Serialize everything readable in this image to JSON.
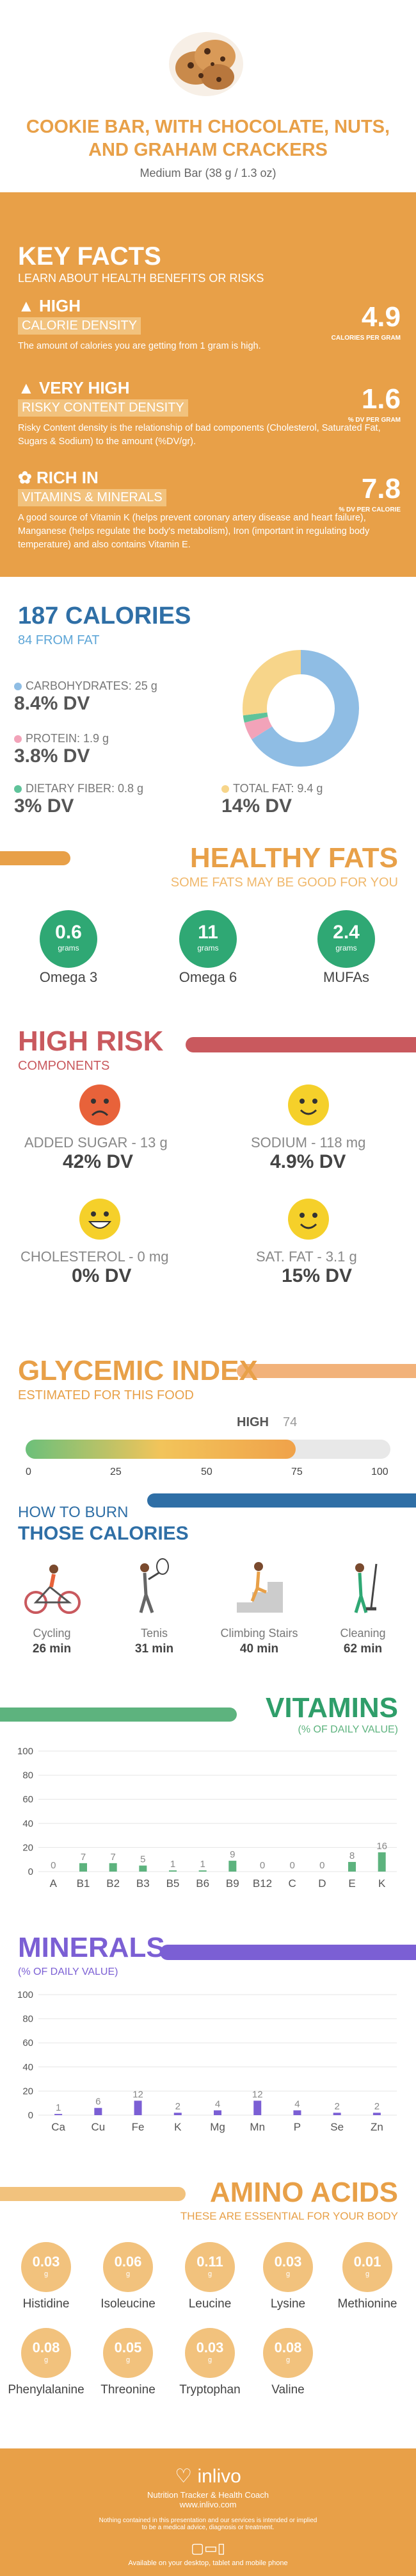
{
  "header": {
    "title": "COOKIE BAR, WITH CHOCOLATE, NUTS, AND GRAHAM CRACKERS",
    "serving": "Medium Bar (38 g / 1.3 oz)"
  },
  "key_facts": {
    "title": "KEY FACTS",
    "subtitle": "LEARN ABOUT HEALTH BENEFITS OR RISKS",
    "items": [
      {
        "l1": "HIGH",
        "l2": "CALORIE DENSITY",
        "value": "4.9",
        "unit": "CALORIES PER GRAM",
        "desc": "The amount of calories you are getting from 1 gram is high."
      },
      {
        "l1": "VERY HIGH",
        "l2": "RISKY CONTENT DENSITY",
        "value": "1.6",
        "unit": "% DV PER GRAM",
        "desc": "Risky Content density is the relationship of bad components (Cholesterol, Saturated Fat, Sugars & Sodium) to the amount (%DV/gr)."
      },
      {
        "l1": "RICH IN",
        "l2": "VITAMINS & MINERALS",
        "value": "7.8",
        "unit": "% DV PER CALORIE",
        "desc": "A good source of Vitamin K (helps prevent coronary artery disease and heart failure), Manganese (helps regulate the body's metabolism), Iron (important in regulating body temperature) and also contains Vitamin E."
      }
    ]
  },
  "calories": {
    "title": "187 CALORIES",
    "from_fat": "84 FROM FAT",
    "nutrients": [
      {
        "label": "CARBOHYDRATES: 25 g",
        "dv": "8.4% DV",
        "color": "#8fbde4"
      },
      {
        "label": "PROTEIN: 1.9 g",
        "dv": "3.8% DV",
        "color": "#f2a3b9"
      },
      {
        "label": "DIETARY FIBER: 0.8 g",
        "dv": "3% DV",
        "color": "#5fc39a"
      },
      {
        "label": "TOTAL FAT: 9.4 g",
        "dv": "14% DV",
        "color": "#f7d58a"
      }
    ],
    "donut": [
      {
        "name": "carbs",
        "fraction": 0.66,
        "color": "#8fbde4"
      },
      {
        "name": "protein",
        "fraction": 0.05,
        "color": "#f2a3b9"
      },
      {
        "name": "fiber",
        "fraction": 0.02,
        "color": "#5fc39a"
      },
      {
        "name": "fat",
        "fraction": 0.27,
        "color": "#f7d58a"
      }
    ]
  },
  "healthy_fats": {
    "title": "HEALTHY FATS",
    "subtitle": "SOME FATS MAY BE GOOD FOR YOU",
    "unit": "grams",
    "items": [
      {
        "value": "0.6",
        "label": "Omega 3"
      },
      {
        "value": "11",
        "label": "Omega 6"
      },
      {
        "value": "2.4",
        "label": "MUFAs"
      }
    ]
  },
  "high_risk": {
    "title": "HIGH RISK",
    "subtitle": "COMPONENTS",
    "items": [
      {
        "label": "ADDED SUGAR - 13 g",
        "dv": "42% DV",
        "face": "sad",
        "color": "#e8623a"
      },
      {
        "label": "SODIUM - 118 mg",
        "dv": "4.9% DV",
        "face": "happy",
        "color": "#f5d02a"
      },
      {
        "label": "CHOLESTEROL - 0 mg",
        "dv": "0% DV",
        "face": "grin",
        "color": "#f5d02a"
      },
      {
        "label": "SAT. FAT - 3.1 g",
        "dv": "15% DV",
        "face": "happy",
        "color": "#f5d02a"
      }
    ]
  },
  "glycemic": {
    "title": "GLYCEMIC INDEX",
    "subtitle": "ESTIMATED FOR THIS FOOD",
    "level": "HIGH",
    "value": 74,
    "ticks": [
      "0",
      "25",
      "50",
      "75",
      "100"
    ]
  },
  "burn": {
    "title1": "HOW TO BURN",
    "title2": "THOSE CALORIES",
    "items": [
      {
        "label": "Cycling",
        "time": "26 min",
        "icon": "cycling-icon"
      },
      {
        "label": "Tenis",
        "time": "31 min",
        "icon": "tennis-icon"
      },
      {
        "label": "Climbing Stairs",
        "time": "40 min",
        "icon": "stairs-icon"
      },
      {
        "label": "Cleaning",
        "time": "62 min",
        "icon": "cleaning-icon"
      }
    ]
  },
  "vitamins": {
    "title": "VITAMINS",
    "subtitle": "(% OF DAILY VALUE)",
    "chart_data": {
      "type": "bar",
      "categories": [
        "A",
        "B1",
        "B2",
        "B3",
        "B5",
        "B6",
        "B9",
        "B12",
        "C",
        "D",
        "E",
        "K"
      ],
      "values": [
        0,
        7,
        7,
        5,
        1,
        1,
        9,
        0,
        0,
        0,
        8,
        16
      ],
      "ylim": [
        0,
        100
      ],
      "yticks": [
        "0",
        "20",
        "40",
        "60",
        "80",
        "100"
      ],
      "color": "#5db37e"
    }
  },
  "minerals": {
    "title": "MINERALS",
    "subtitle": "(% OF DAILY VALUE)",
    "chart_data": {
      "type": "bar",
      "categories": [
        "Ca",
        "Cu",
        "Fe",
        "K",
        "Mg",
        "Mn",
        "P",
        "Se",
        "Zn"
      ],
      "values": [
        1,
        6,
        12,
        2,
        4,
        12,
        4,
        2,
        2
      ],
      "ylim": [
        0,
        100
      ],
      "yticks": [
        "0",
        "20",
        "40",
        "60",
        "80",
        "100"
      ],
      "color": "#7b5fd4"
    }
  },
  "amino": {
    "title": "AMINO ACIDS",
    "subtitle": "THESE ARE ESSENTIAL FOR YOUR BODY",
    "unit": "g",
    "items": [
      {
        "value": "0.03",
        "label": "Histidine"
      },
      {
        "value": "0.06",
        "label": "Isoleucine"
      },
      {
        "value": "0.11",
        "label": "Leucine"
      },
      {
        "value": "0.03",
        "label": "Lysine"
      },
      {
        "value": "0.01",
        "label": "Methionine"
      },
      {
        "value": "0.08",
        "label": "Phenylalanine"
      },
      {
        "value": "0.05",
        "label": "Threonine"
      },
      {
        "value": "0.03",
        "label": "Tryptophan"
      },
      {
        "value": "0.08",
        "label": "Valine"
      }
    ]
  },
  "footer": {
    "brand": "inlivo",
    "tagline": "Nutrition Tracker & Health Coach",
    "url": "www.inlivo.com",
    "disclaimer1": "Nothing contained in this presentation and our services is intended or implied",
    "disclaimer2": "to be a medical advice, diagnosis or treatment.",
    "available": "Available on your desktop, tablet and mobile phone"
  }
}
